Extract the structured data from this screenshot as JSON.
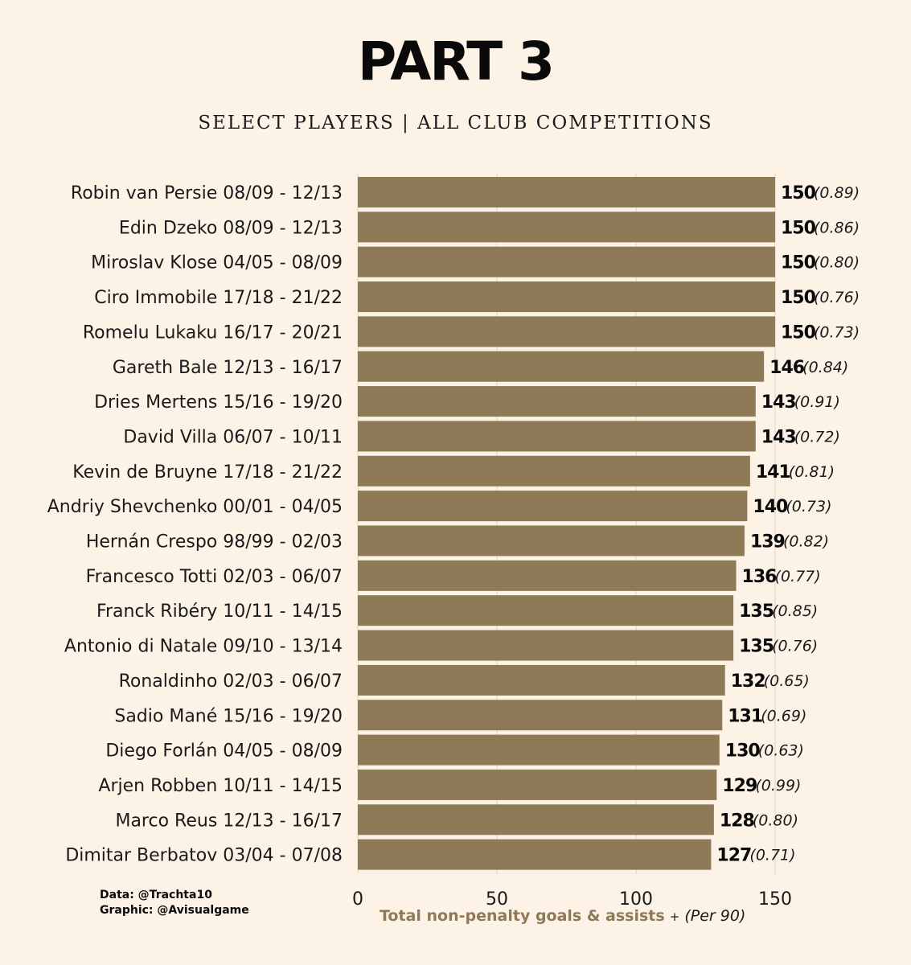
{
  "title": "PART 3",
  "subtitle": "SELECT PLAYERS  |  ALL CLUB COMPETITIONS",
  "credits": {
    "data": "Data: @Trachta10",
    "graphic": "Graphic: @Avisualgame"
  },
  "xlabel": {
    "main": "Total non-penalty goals & assists",
    "plus": "+",
    "per": "(Per 90)"
  },
  "colors": {
    "background": "#fcf3e6",
    "bar": "#8f7a58",
    "grid": "#ddd3c4"
  },
  "chart_data": {
    "type": "bar",
    "orientation": "horizontal",
    "categories": [
      "Robin van Persie 08/09 - 12/13",
      "Edin Dzeko 08/09 - 12/13",
      "Miroslav Klose 04/05 - 08/09",
      "Ciro Immobile 17/18 - 21/22",
      "Romelu Lukaku 16/17 - 20/21",
      "Gareth Bale 12/13 - 16/17",
      "Dries Mertens 15/16 - 19/20",
      "David Villa 06/07 - 10/11",
      "Kevin de Bruyne 17/18 - 21/22",
      "Andriy Shevchenko 00/01 - 04/05",
      "Hernán Crespo 98/99 - 02/03",
      "Francesco Totti 02/03 - 06/07",
      "Franck Ribéry 10/11 - 14/15",
      "Antonio di Natale 09/10 - 13/14",
      "Ronaldinho 02/03 - 06/07",
      "Sadio Mané 15/16 - 19/20",
      "Diego Forlán 04/05 - 08/09",
      "Arjen Robben 10/11 - 14/15",
      "Marco Reus 12/13 - 16/17",
      "Dimitar Berbatov 03/04 - 07/08"
    ],
    "values": [
      150,
      150,
      150,
      150,
      150,
      146,
      143,
      143,
      141,
      140,
      139,
      136,
      135,
      135,
      132,
      131,
      130,
      129,
      128,
      127
    ],
    "per90": [
      "(0.89)",
      "(0.86)",
      "(0.80)",
      "(0.76)",
      "(0.73)",
      "(0.84)",
      "(0.91)",
      "(0.72)",
      "(0.81)",
      "(0.73)",
      "(0.82)",
      "(0.77)",
      "(0.85)",
      "(0.76)",
      "(0.65)",
      "(0.69)",
      "(0.63)",
      "(0.99)",
      "(0.80)",
      "(0.71)"
    ],
    "xticks": [
      0,
      50,
      100,
      150
    ],
    "xlim": [
      0,
      150
    ],
    "grid": true
  }
}
